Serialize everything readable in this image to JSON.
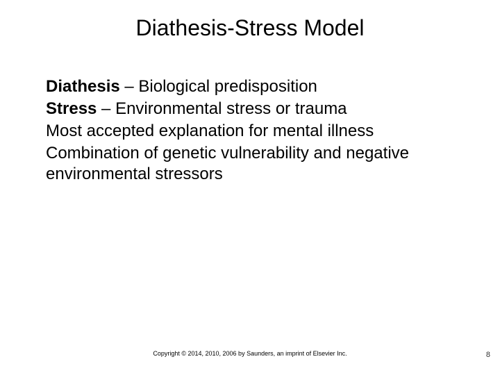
{
  "title": "Diathesis-Stress Model",
  "title_fontsize": 32,
  "body_fontsize": 24,
  "bullet_marker": "಑",
  "bullets": [
    {
      "bold": "Diathesis",
      "rest": " – Biological predisposition"
    },
    {
      "bold": "Stress",
      "rest": " – Environmental stress or trauma"
    },
    {
      "bold": "",
      "rest": "Most accepted explanation for mental illness"
    },
    {
      "bold": "",
      "rest": "Combination of genetic vulnerability and negative environmental stressors"
    }
  ],
  "copyright": "Copyright © 2014, 2010, 2006 by Saunders, an imprint of Elsevier Inc.",
  "page_number": "8",
  "colors": {
    "background": "#ffffff",
    "text": "#000000"
  }
}
